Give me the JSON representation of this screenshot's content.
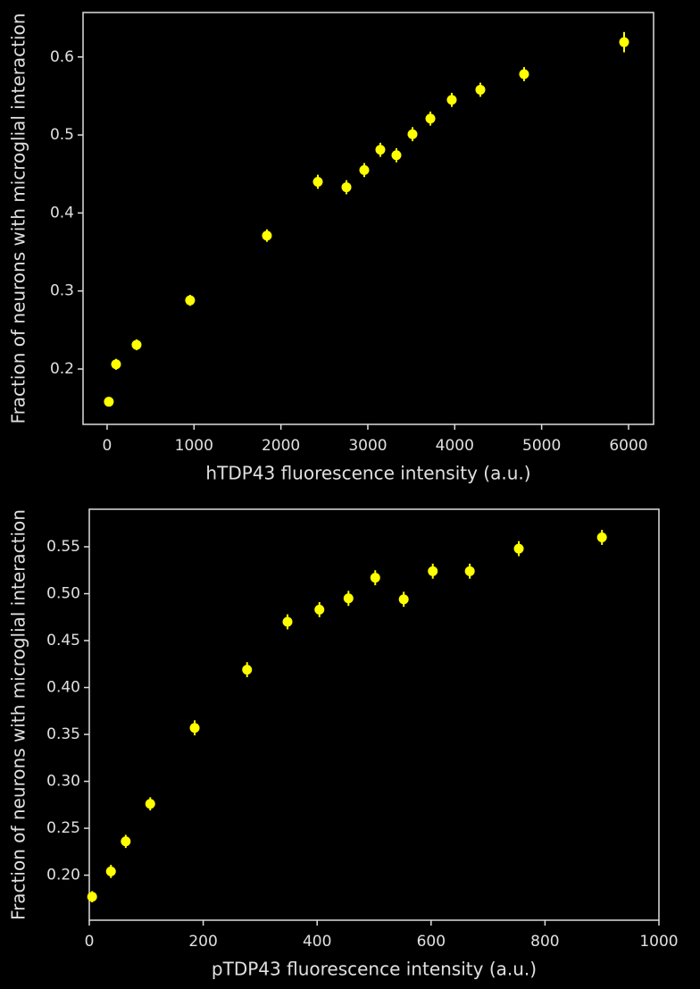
{
  "chart_data": [
    {
      "type": "scatter",
      "xlabel": "hTDP43 fluorescence intensity (a.u.)",
      "ylabel": "Fraction of neurons with microglial interaction",
      "color": "#ffff00",
      "x": [
        20,
        103,
        339,
        955,
        1839,
        2425,
        2754,
        2959,
        3144,
        3329,
        3514,
        3720,
        3966,
        4295,
        4798,
        5949
      ],
      "values": [
        0.158,
        0.206,
        0.231,
        0.288,
        0.371,
        0.44,
        0.433,
        0.455,
        0.481,
        0.474,
        0.501,
        0.521,
        0.545,
        0.558,
        0.578,
        0.619
      ],
      "yerr": [
        0.006,
        0.007,
        0.007,
        0.007,
        0.008,
        0.009,
        0.009,
        0.009,
        0.009,
        0.009,
        0.009,
        0.009,
        0.009,
        0.009,
        0.009,
        0.013
      ],
      "xlim": [
        -277,
        6288
      ],
      "ylim": [
        0.129,
        0.657
      ],
      "xticks": [
        0,
        1000,
        2000,
        3000,
        4000,
        5000,
        6000
      ],
      "yticks": [
        0.2,
        0.3,
        0.4,
        0.5,
        0.6
      ]
    },
    {
      "type": "scatter",
      "xlabel": "pTDP43 fluorescence intensity (a.u.)",
      "ylabel": "Fraction of neurons with microglial interaction",
      "color": "#ffff00",
      "x": [
        5,
        38,
        64,
        107,
        185,
        277,
        348,
        404,
        455,
        502,
        552,
        603,
        668,
        754,
        900
      ],
      "values": [
        0.177,
        0.204,
        0.236,
        0.276,
        0.357,
        0.419,
        0.47,
        0.483,
        0.495,
        0.517,
        0.494,
        0.524,
        0.524,
        0.548,
        0.56
      ],
      "yerr": [
        0.006,
        0.007,
        0.007,
        0.007,
        0.008,
        0.008,
        0.008,
        0.008,
        0.008,
        0.008,
        0.008,
        0.008,
        0.008,
        0.008,
        0.008
      ],
      "xlim": [
        0,
        1000
      ],
      "ylim": [
        0.152,
        0.59
      ],
      "xticks": [
        0,
        200,
        400,
        600,
        800,
        1000
      ],
      "yticks": [
        {
          "value": 0.2,
          "label": "0.20"
        },
        {
          "value": 0.25,
          "label": "0.25"
        },
        {
          "value": 0.3,
          "label": "0.30"
        },
        {
          "value": 0.35,
          "label": "0.35"
        },
        {
          "value": 0.4,
          "label": "0.40"
        },
        {
          "value": 0.45,
          "label": "0.45"
        },
        {
          "value": 0.5,
          "label": "0.50"
        },
        {
          "value": 0.55,
          "label": "0.55"
        }
      ]
    }
  ]
}
